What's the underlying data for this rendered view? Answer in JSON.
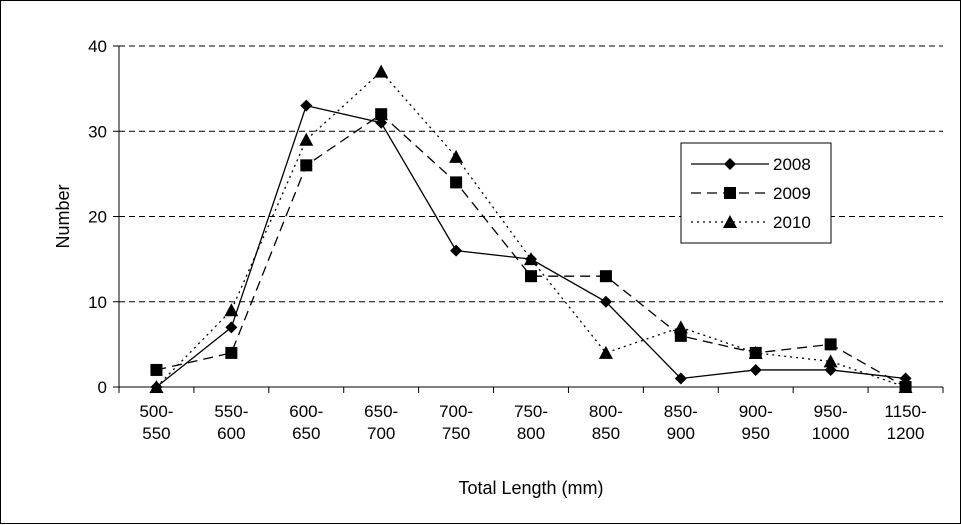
{
  "chart_data": {
    "type": "line",
    "title": "",
    "xlabel": "Total Length (mm)",
    "ylabel": "Number",
    "ylim": [
      0,
      40
    ],
    "yticks": [
      "0",
      "10",
      "20",
      "30",
      "40"
    ],
    "grid": "horizontal dashed",
    "legend_position": "right",
    "categories": [
      [
        "500-",
        "550"
      ],
      [
        "550-",
        "600"
      ],
      [
        "600-",
        "650"
      ],
      [
        "650-",
        "700"
      ],
      [
        "700-",
        "750"
      ],
      [
        "750-",
        "800"
      ],
      [
        "800-",
        "850"
      ],
      [
        "850-",
        "900"
      ],
      [
        "900-",
        "950"
      ],
      [
        "950-",
        "1000"
      ],
      [
        "1150-",
        "1200"
      ]
    ],
    "series": [
      {
        "name": "2008",
        "marker": "diamond",
        "line": "solid",
        "values": [
          0,
          7,
          33,
          31,
          16,
          15,
          10,
          1,
          2,
          2,
          1
        ]
      },
      {
        "name": "2009",
        "marker": "square",
        "line": "dashed",
        "values": [
          2,
          4,
          26,
          32,
          24,
          13,
          13,
          6,
          4,
          5,
          0
        ]
      },
      {
        "name": "2010",
        "marker": "triangle",
        "line": "dotted",
        "values": [
          0,
          9,
          29,
          37,
          27,
          15,
          4,
          7,
          4,
          3,
          0
        ]
      }
    ],
    "colors": {
      "line": "#000000",
      "grid": "#000000",
      "background": "#ffffff"
    }
  }
}
